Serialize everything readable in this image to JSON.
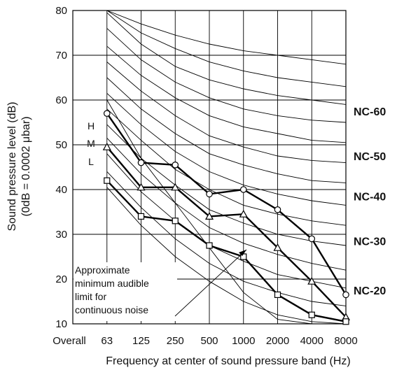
{
  "chart_data": {
    "type": "line",
    "xlabel": "Frequency at center of sound pressure band (Hz)",
    "ylabel_line1": "Sound pressure level (dB)",
    "ylabel_line2": "(0dB = 0.0002 μbar)",
    "ylim": [
      10,
      80
    ],
    "yticks": [
      10,
      20,
      30,
      40,
      50,
      60,
      70,
      80
    ],
    "x_categories": [
      "Overall",
      "63",
      "125",
      "250",
      "500",
      "1000",
      "2000",
      "4000",
      "8000"
    ],
    "grid": true,
    "series": [
      {
        "name": "H",
        "marker": "circle",
        "values": [
          57,
          46,
          45.5,
          39,
          40,
          35.5,
          29,
          16.5
        ]
      },
      {
        "name": "M",
        "marker": "triangle",
        "values": [
          49.5,
          40.5,
          40.5,
          34,
          34.5,
          27,
          19.5,
          11.5
        ]
      },
      {
        "name": "L",
        "marker": "square",
        "values": [
          42,
          34,
          33,
          27.5,
          25,
          16.5,
          12,
          10.5
        ]
      }
    ],
    "nc_labels": [
      {
        "label": "NC-60",
        "y": 57.5
      },
      {
        "label": "NC-50",
        "y": 47.5
      },
      {
        "label": "NC-40",
        "y": 38.5
      },
      {
        "label": "NC-30",
        "y": 28.5
      },
      {
        "label": "NC-20",
        "y": 17.5
      }
    ],
    "nc_curves": [
      [
        80,
        77,
        74.5,
        72.5,
        71,
        70,
        69,
        68
      ],
      [
        80,
        75,
        71.5,
        68.5,
        66.5,
        65,
        64,
        63
      ],
      [
        79.5,
        72.5,
        67.5,
        64.5,
        62.5,
        61,
        60,
        59
      ],
      [
        76,
        69,
        64,
        60.5,
        58,
        56.5,
        55.5,
        55
      ],
      [
        72,
        65.5,
        60.5,
        56.5,
        54,
        52.5,
        51,
        50.5
      ],
      [
        68.5,
        62,
        56.5,
        52,
        49.5,
        47.5,
        46.5,
        46
      ],
      [
        65,
        58,
        52.5,
        48,
        45.5,
        43.5,
        42,
        41.5
      ],
      [
        61.5,
        54.5,
        48.5,
        44,
        41,
        39,
        37.5,
        36.5
      ],
      [
        58,
        51,
        44.5,
        40,
        36.5,
        34.5,
        33,
        32
      ],
      [
        54.5,
        47,
        41,
        35.5,
        32.5,
        30,
        28.5,
        27.5
      ],
      [
        51.5,
        43.5,
        37,
        31.5,
        28,
        25.5,
        23.5,
        22
      ],
      [
        48,
        39.5,
        33,
        27.5,
        24,
        21,
        19.5,
        18
      ],
      [
        44,
        36,
        29,
        23.5,
        19.5,
        17,
        15,
        14
      ],
      [
        40.5,
        32,
        25,
        19.5,
        15,
        12,
        10.5,
        10
      ]
    ],
    "audible_limit": [
      60,
      47,
      37,
      27,
      17,
      11,
      10,
      10
    ],
    "hml_labels": [
      "H",
      "M",
      "L"
    ],
    "annotation": [
      "Approximate",
      "minimum audible",
      "limit for",
      "continuous noise"
    ]
  }
}
